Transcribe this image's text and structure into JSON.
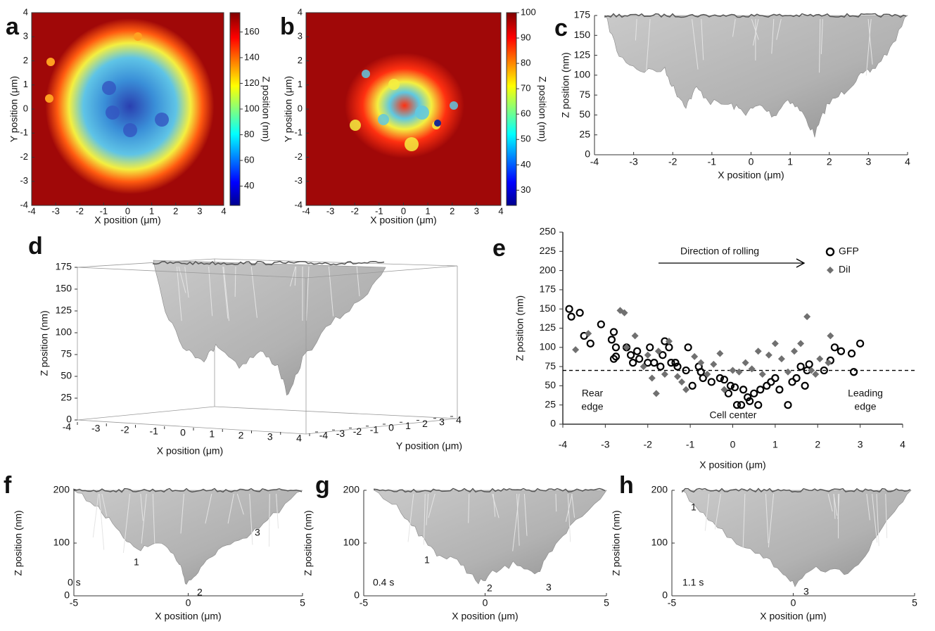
{
  "chart_data": [
    {
      "label": "a",
      "type": "heatmap",
      "xlabel": "X position (μm)",
      "ylabel": "Y position (μm)",
      "colorbar_label": "Z position (nm)",
      "xlim": [
        -4,
        4
      ],
      "ylim": [
        -4,
        4
      ],
      "xticks": [
        -4,
        -3,
        -2,
        -1,
        0,
        1,
        2,
        3,
        4
      ],
      "yticks": [
        -4,
        -3,
        -2,
        -1,
        0,
        1,
        2,
        3,
        4
      ],
      "clim": [
        25,
        175
      ],
      "cticks": [
        40,
        60,
        80,
        100,
        120,
        140,
        160
      ]
    },
    {
      "label": "b",
      "type": "heatmap",
      "xlabel": "X position (μm)",
      "ylabel": "Y position (μm)",
      "colorbar_label": "Z position (nm)",
      "xlim": [
        -4,
        4
      ],
      "ylim": [
        -4,
        4
      ],
      "xticks": [
        -4,
        -3,
        -2,
        -1,
        0,
        1,
        2,
        3,
        4
      ],
      "yticks": [
        -4,
        -3,
        -2,
        -1,
        0,
        1,
        2,
        3,
        4
      ],
      "clim": [
        24,
        100
      ],
      "cticks": [
        30,
        40,
        50,
        60,
        70,
        80,
        90,
        100
      ]
    },
    {
      "label": "c",
      "type": "surface",
      "xlabel": "X position (μm)",
      "zlabel": "Z position (nm)",
      "xlim": [
        -4,
        4
      ],
      "zlim": [
        0,
        175
      ],
      "xticks": [
        -4,
        -3,
        -2,
        -1,
        0,
        1,
        2,
        3,
        4
      ],
      "zticks": [
        0,
        25,
        50,
        75,
        100,
        125,
        150,
        175
      ]
    },
    {
      "label": "d",
      "type": "surface3d",
      "xlabel": "X position (μm)",
      "ylabel": "Y position (μm)",
      "zlabel": "Z position (nm)",
      "xlim": [
        -4,
        4
      ],
      "ylim": [
        -4,
        4
      ],
      "zlim": [
        0,
        175
      ],
      "xticks": [
        -4,
        -3,
        -2,
        -1,
        0,
        1,
        2,
        3,
        4
      ],
      "yticks": [
        -4,
        -3,
        -2,
        -1,
        0,
        1,
        2,
        3,
        4
      ],
      "zticks": [
        0,
        25,
        50,
        75,
        100,
        125,
        150,
        175
      ]
    },
    {
      "label": "e",
      "type": "scatter",
      "xlabel": "X position (μm)",
      "ylabel": "Z position  (nm)",
      "xlim": [
        -4,
        4
      ],
      "ylim": [
        0,
        250
      ],
      "xticks": [
        -4,
        -3,
        -2,
        -1,
        0,
        1,
        2,
        3,
        4
      ],
      "yticks": [
        0,
        25,
        50,
        75,
        100,
        125,
        150,
        175,
        200,
        225,
        250
      ],
      "threshold": 70,
      "series": [
        {
          "name": "GFP",
          "marker": "circle",
          "color": "#000000",
          "x": [
            -3.85,
            -3.8,
            -3.6,
            -3.5,
            -3.35,
            -3.1,
            -2.85,
            -2.8,
            -2.75,
            -2.8,
            -2.75,
            -2.5,
            -2.4,
            -2.35,
            -2.25,
            -2.2,
            -2.0,
            -1.95,
            -1.85,
            -1.7,
            -1.65,
            -1.6,
            -1.5,
            -1.45,
            -1.35,
            -1.3,
            -1.1,
            -1.05,
            -0.95,
            -0.8,
            -0.75,
            -0.7,
            -0.5,
            -0.3,
            -0.2,
            -0.1,
            -0.05,
            0.1,
            0.2,
            0.25,
            0.35,
            0.4,
            0.5,
            0.6,
            0.65,
            0.8,
            0.9,
            1.0,
            1.1,
            1.3,
            1.4,
            1.5,
            1.6,
            1.7,
            1.75,
            1.8,
            2.15,
            2.3,
            2.4,
            2.55,
            2.8,
            2.85,
            3.0,
            0.05
          ],
          "y": [
            150,
            140,
            145,
            115,
            105,
            130,
            110,
            120,
            100,
            85,
            88,
            100,
            90,
            80,
            95,
            85,
            80,
            100,
            80,
            75,
            90,
            108,
            100,
            80,
            80,
            75,
            70,
            100,
            50,
            75,
            68,
            60,
            55,
            60,
            58,
            40,
            50,
            25,
            25,
            45,
            35,
            30,
            40,
            25,
            45,
            50,
            55,
            60,
            45,
            25,
            55,
            60,
            75,
            50,
            70,
            78,
            70,
            83,
            100,
            95,
            92,
            68,
            105,
            48
          ]
        },
        {
          "name": "DiI",
          "marker": "diamond",
          "color": "#707070",
          "x": [
            -3.7,
            -3.4,
            -2.65,
            -2.55,
            -2.5,
            -2.3,
            -2.1,
            -1.9,
            -1.75,
            -1.6,
            -1.5,
            -1.3,
            -1.2,
            -1.1,
            -0.9,
            -0.75,
            -0.6,
            -0.45,
            -0.3,
            -0.2,
            0.0,
            0.15,
            0.3,
            0.45,
            0.6,
            0.7,
            0.85,
            1.0,
            1.15,
            1.3,
            1.45,
            1.6,
            1.75,
            1.85,
            2.05,
            2.3,
            2.25,
            1.95,
            -2.0,
            -1.8
          ],
          "y": [
            97,
            118,
            148,
            145,
            100,
            115,
            75,
            60,
            95,
            65,
            108,
            62,
            55,
            45,
            88,
            80,
            65,
            78,
            92,
            45,
            70,
            68,
            80,
            72,
            95,
            65,
            90,
            105,
            85,
            68,
            95,
            105,
            140,
            70,
            85,
            115,
            80,
            65,
            90,
            40
          ]
        }
      ],
      "annotations": {
        "direction": "Direction of rolling",
        "rear_edge": [
          "Rear",
          "edge"
        ],
        "cell_center": "Cell center",
        "leading_edge": [
          "Leading",
          "edge"
        ]
      }
    },
    {
      "label": "f",
      "type": "surface",
      "xlabel": "X position (μm)",
      "zlabel": "Z  position (nm)",
      "xlim": [
        -5,
        5
      ],
      "zlim": [
        0,
        200
      ],
      "xticks": [
        -5,
        0,
        5
      ],
      "zticks": [
        0,
        100,
        200
      ],
      "time": "0 s",
      "markers": [
        "1",
        "2",
        "3"
      ]
    },
    {
      "label": "g",
      "type": "surface",
      "xlabel": "X position (μm)",
      "zlabel": "Z  position (nm)",
      "xlim": [
        -5,
        5
      ],
      "zlim": [
        0,
        200
      ],
      "xticks": [
        -5,
        0,
        5
      ],
      "zticks": [
        0,
        100,
        200
      ],
      "time": "0.4 s",
      "markers": [
        "1",
        "2",
        "3"
      ]
    },
    {
      "label": "h",
      "type": "surface",
      "xlabel": "X position (μm)",
      "zlabel": "Z  position (nm)",
      "xlim": [
        -5,
        5
      ],
      "zlim": [
        0,
        200
      ],
      "xticks": [
        -5,
        0,
        5
      ],
      "zticks": [
        0,
        100,
        200
      ],
      "time": "1.1 s",
      "markers": [
        "1",
        "3"
      ]
    }
  ]
}
